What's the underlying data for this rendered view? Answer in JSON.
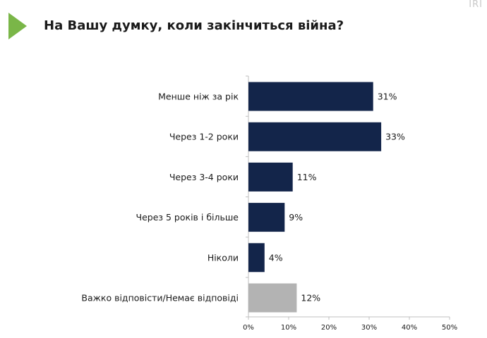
{
  "logo_text": "IRI",
  "brand_color": "#7ab648",
  "chart_data": {
    "type": "bar",
    "orientation": "horizontal",
    "title": "На Вашу думку, коли закінчиться війна?",
    "categories": [
      "Менше ніж за рік",
      "Через 1-2 роки",
      "Через 3-4 роки",
      "Через 5 років і більше",
      "Ніколи",
      "Важко відповісти/Немає відповіді"
    ],
    "values": [
      31,
      33,
      11,
      9,
      4,
      12
    ],
    "value_labels": [
      "31%",
      "33%",
      "11%",
      "9%",
      "4%",
      "12%"
    ],
    "colors": [
      "#13254a",
      "#13254a",
      "#13254a",
      "#13254a",
      "#13254a",
      "#b3b3b3"
    ],
    "xlim": [
      0,
      50
    ],
    "xticks": [
      "0%",
      "10%",
      "20%",
      "30%",
      "40%",
      "50%"
    ],
    "xlabel": "",
    "ylabel": "",
    "grid": false,
    "legend": "none"
  }
}
